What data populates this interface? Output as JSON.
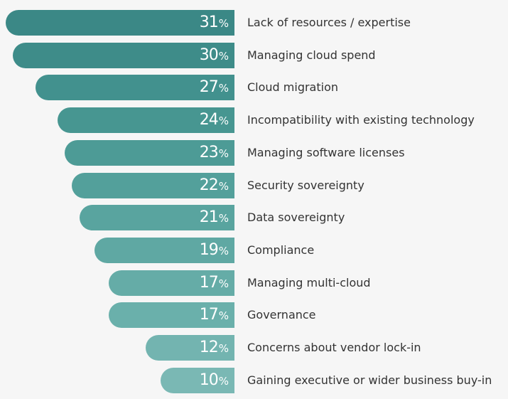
{
  "chart_data": {
    "type": "bar",
    "orientation": "horizontal",
    "title": "",
    "xlabel": "",
    "ylabel": "",
    "unit": "%",
    "xlim": [
      0,
      31
    ],
    "categories": [
      "Lack of resources / expertise",
      "Managing cloud spend",
      "Cloud migration",
      "Incompatibility with existing technology",
      "Managing software licenses",
      "Security sovereignty",
      "Data sovereignty",
      "Compliance",
      "Managing multi-cloud",
      "Governance",
      "Concerns about vendor lock-in",
      "Gaining executive or wider business buy-in"
    ],
    "values": [
      31,
      30,
      27,
      24,
      23,
      22,
      21,
      19,
      17,
      17,
      12,
      10
    ],
    "colors": [
      "#3b8886",
      "#3e8c89",
      "#42918e",
      "#479691",
      "#4d9b96",
      "#53a09b",
      "#59a49f",
      "#5fa8a3",
      "#65aca7",
      "#6ab0ab",
      "#73b4b0",
      "#7ab8b4"
    ]
  }
}
